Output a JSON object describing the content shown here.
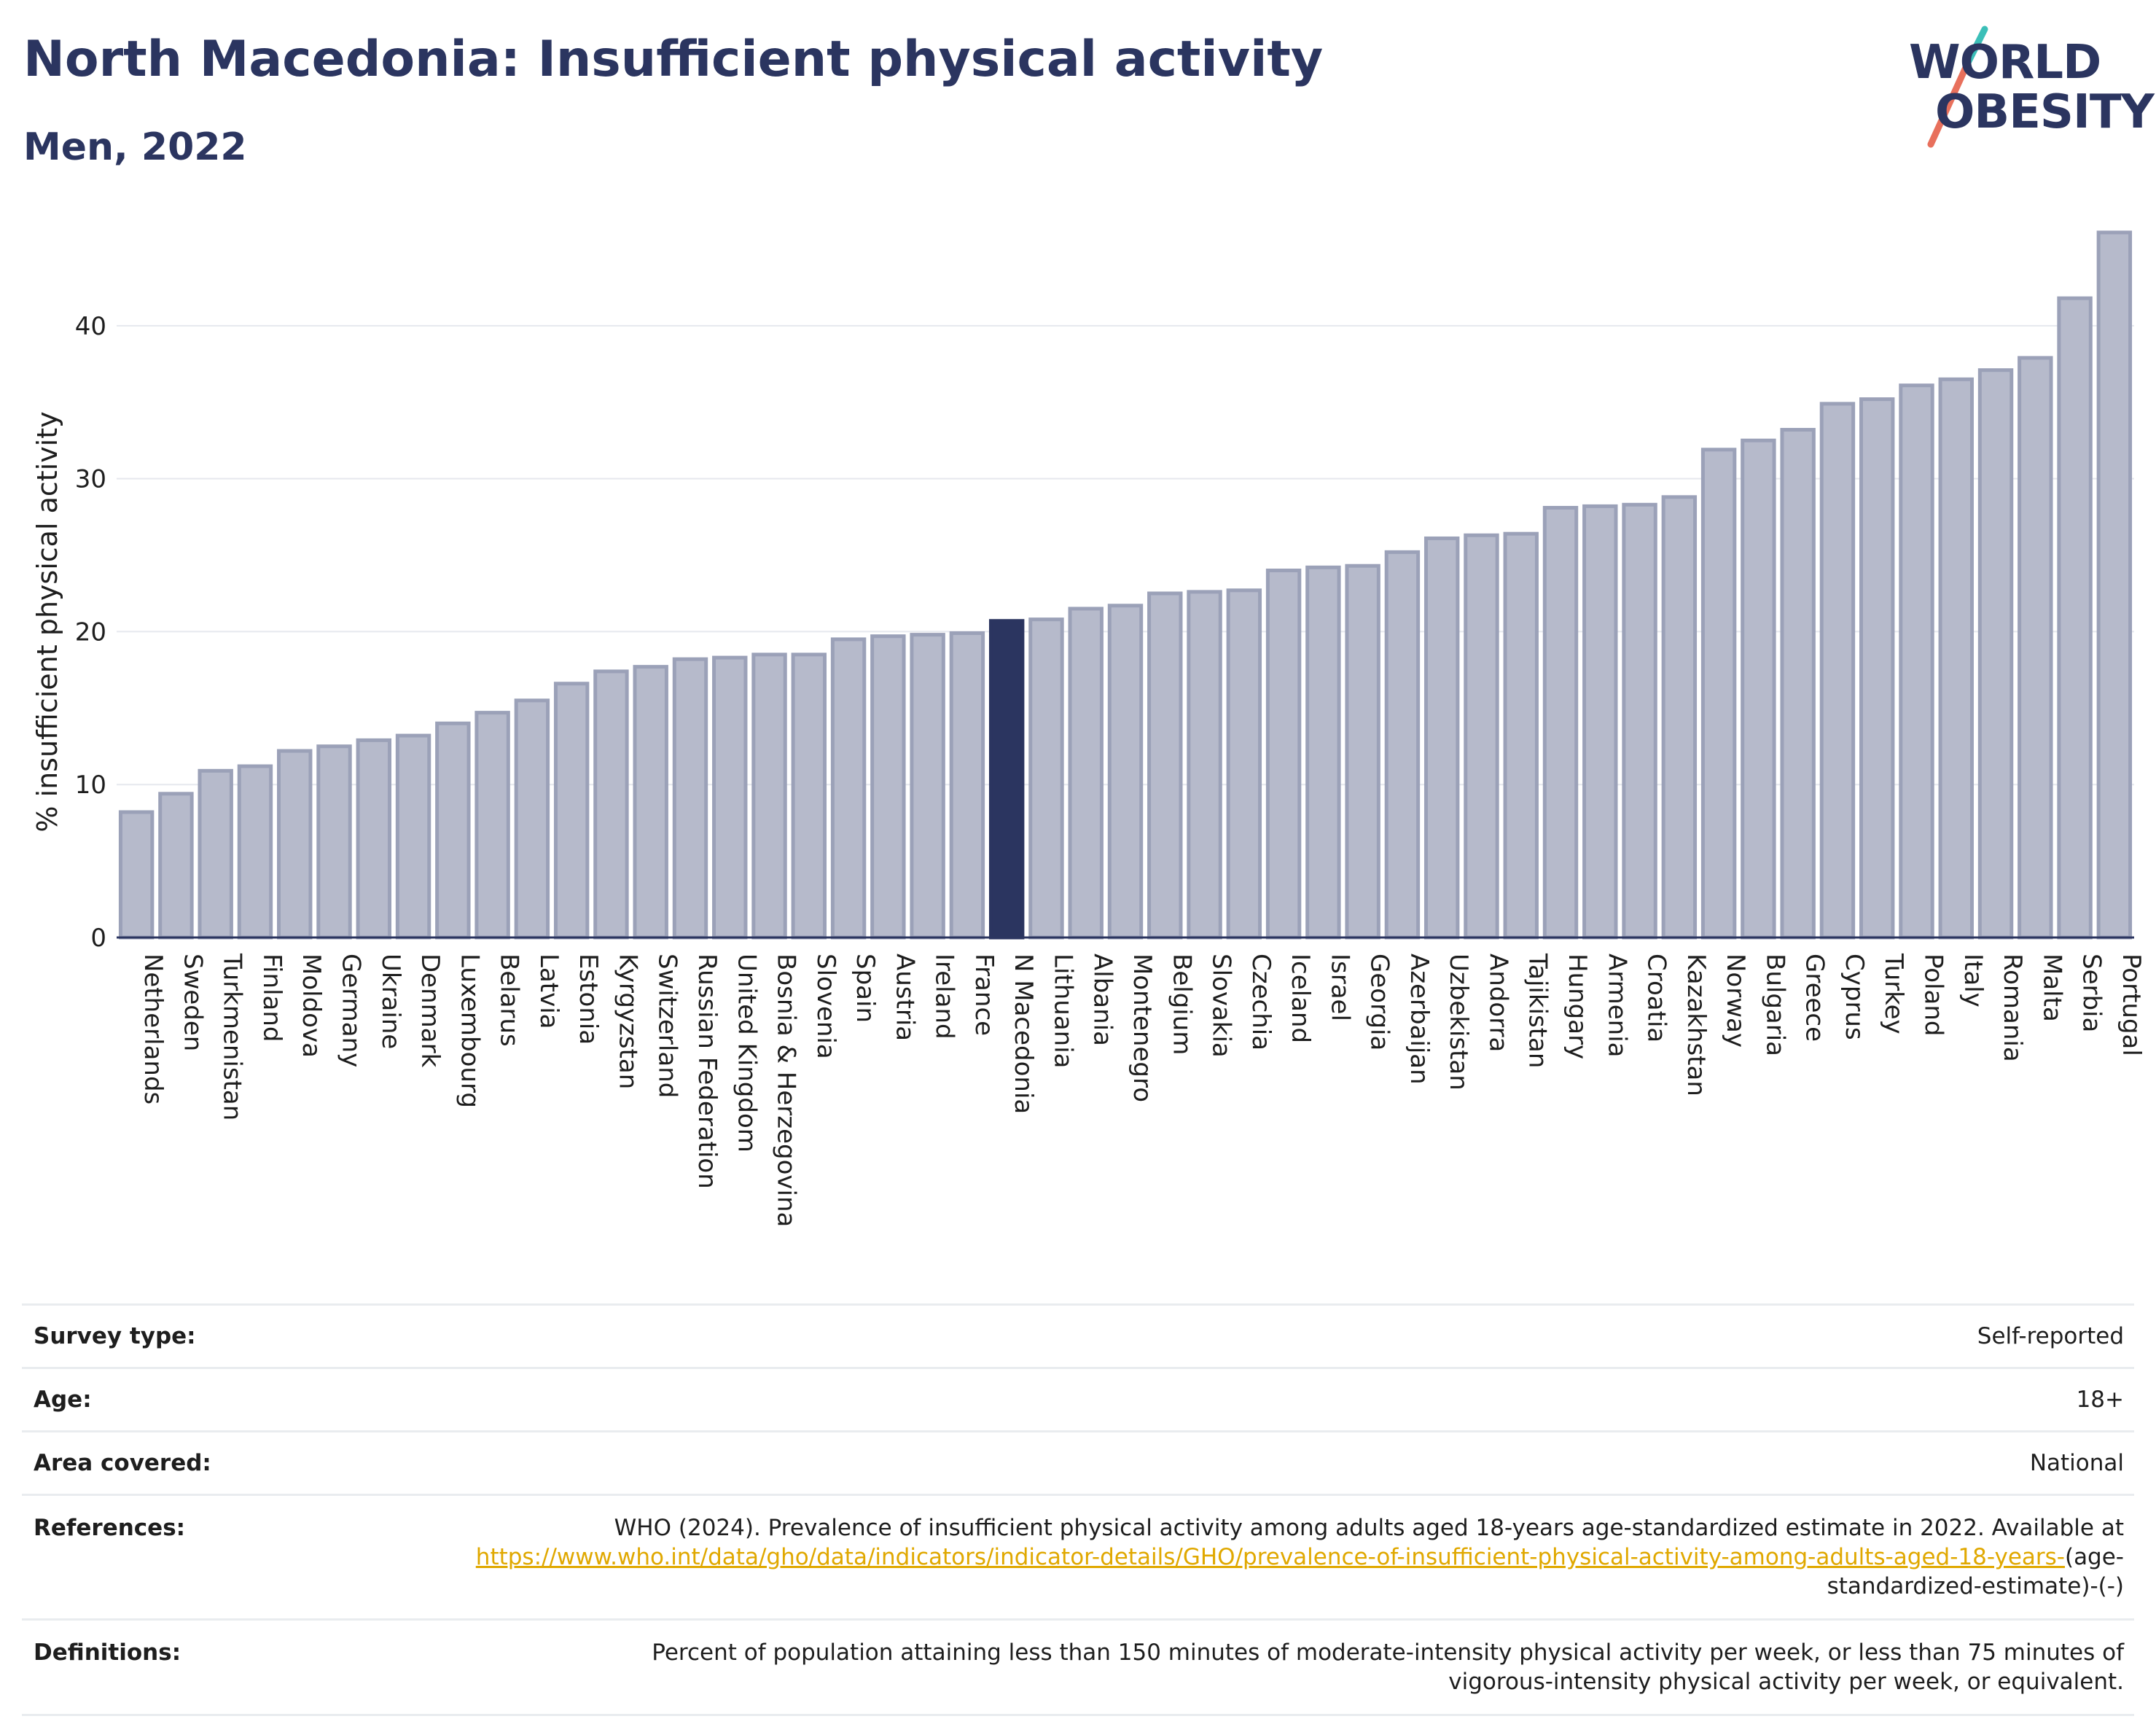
{
  "header": {
    "title": "North Macedonia: Insufficient physical activity",
    "subtitle": "Men, 2022"
  },
  "logo": {
    "line1": "WORLD",
    "line2": "OBESITY"
  },
  "chart_data": {
    "type": "bar",
    "title": "North Macedonia: Insufficient physical activity",
    "subtitle": "Men, 2022",
    "xlabel": "",
    "ylabel": "% insufficient physical activity",
    "ylim": [
      0,
      47
    ],
    "yticks": [
      0,
      10,
      20,
      30,
      40
    ],
    "grid": true,
    "highlight": "N Macedonia",
    "colors": {
      "bar": "#b6bacb",
      "bar_border": "#9ba1b8",
      "highlight": "#2b3560"
    },
    "categories": [
      "Netherlands",
      "Sweden",
      "Turkmenistan",
      "Finland",
      "Moldova",
      "Germany",
      "Ukraine",
      "Denmark",
      "Luxembourg",
      "Belarus",
      "Latvia",
      "Estonia",
      "Kyrgyzstan",
      "Switzerland",
      "Russian Federation",
      "United Kingdom",
      "Bosnia & Herzegovina",
      "Slovenia",
      "Spain",
      "Austria",
      "Ireland",
      "France",
      "N Macedonia",
      "Lithuania",
      "Albania",
      "Montenegro",
      "Belgium",
      "Slovakia",
      "Czechia",
      "Iceland",
      "Israel",
      "Georgia",
      "Azerbaijan",
      "Uzbekistan",
      "Andorra",
      "Tajikistan",
      "Hungary",
      "Armenia",
      "Croatia",
      "Kazakhstan",
      "Norway",
      "Bulgaria",
      "Greece",
      "Cyprus",
      "Turkey",
      "Poland",
      "Italy",
      "Romania",
      "Malta",
      "Serbia",
      "Portugal"
    ],
    "values": [
      8.2,
      9.4,
      10.9,
      11.2,
      12.2,
      12.5,
      12.9,
      13.2,
      14.0,
      14.7,
      15.5,
      16.6,
      17.4,
      17.7,
      18.2,
      18.3,
      18.5,
      18.5,
      19.5,
      19.7,
      19.8,
      19.9,
      20.7,
      20.8,
      21.5,
      21.7,
      22.5,
      22.6,
      22.7,
      24.0,
      24.2,
      24.3,
      25.2,
      26.1,
      26.3,
      26.4,
      28.1,
      28.2,
      28.3,
      28.8,
      31.9,
      32.5,
      33.2,
      34.9,
      35.2,
      36.1,
      36.5,
      37.1,
      37.9,
      41.8,
      46.1
    ]
  },
  "info": {
    "survey_type": {
      "label": "Survey type:",
      "value": "Self-reported"
    },
    "age": {
      "label": "Age:",
      "value": "18+"
    },
    "area": {
      "label": "Area covered:",
      "value": "National"
    },
    "references": {
      "label": "References:",
      "text": "WHO (2024). Prevalence of insufficient physical activity among adults aged 18-years age-standardized estimate in 2022. Available at ",
      "link": "https://www.who.int/data/gho/data/indicators/indicator-details/GHO/prevalence-of-insufficient-physical-activity-among-adults-aged-18-years-",
      "tail": "(age-standardized-estimate)-(-)"
    },
    "definitions": {
      "label": "Definitions:",
      "value": "Percent of population attaining less than 150 minutes of moderate-intensity physical activity per week, or less than 75 minutes of vigorous-intensity physical activity per week, or equivalent."
    }
  }
}
